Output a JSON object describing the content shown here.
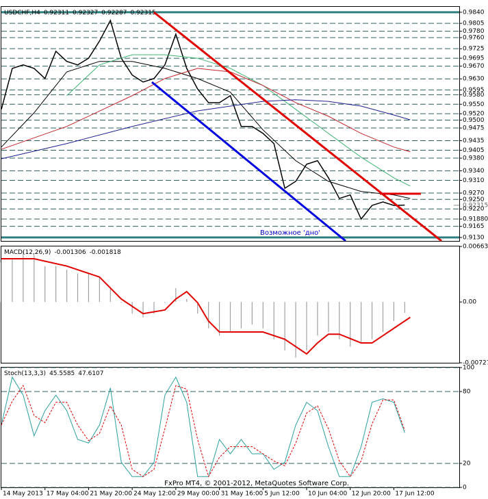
{
  "chart_data": [
    {
      "type": "line",
      "title": "USDCHF,H4",
      "ohlc": [
        0.92311,
        0.92327,
        0.92287,
        0.92315
      ],
      "xlim": [
        0,
        168
      ],
      "ylim": [
        0.9119,
        0.9857
      ],
      "grid": true,
      "yticks": [
        {
          "value": 0.984,
          "label": "0.9840"
        },
        0.9805,
        {
          "value": 0.978,
          "label": "0.9780"
        },
        {
          "value": 0.976,
          "label": "0.9760"
        },
        0.9725,
        0.9695,
        {
          "value": 0.967,
          "label": "0.9670"
        },
        {
          "value": 0.963,
          "label": "0.9630"
        },
        0.9595,
        {
          "value": 0.958,
          "label": "0.9580"
        },
        {
          "value": 0.955,
          "label": "0.9550"
        },
        {
          "value": 0.952,
          "label": "0.9520"
        },
        {
          "value": 0.95,
          "label": "0.9500"
        },
        0.9475,
        0.9435,
        0.9405,
        {
          "value": 0.938,
          "label": "0.9380"
        },
        {
          "value": 0.934,
          "label": "0.9340"
        },
        {
          "value": 0.931,
          "label": "0.9310"
        },
        {
          "value": 0.927,
          "label": "0.9270"
        },
        {
          "value": 0.925,
          "label": "0.9250"
        },
        {
          "value": 0.922,
          "label": "0.9220"
        },
        {
          "value": 0.9188,
          "label": "0.91880"
        },
        0.9165,
        {
          "value": 0.913,
          "label": "0.9130"
        }
      ],
      "price_marker": 0.92315,
      "annotation": "Возможное 'дно'",
      "series": [
        {
          "color": "#000000",
          "width": 1.5,
          "x": [
            0,
            4,
            8,
            12,
            16,
            20,
            24,
            28,
            32,
            36,
            40,
            44,
            48,
            52,
            56,
            60,
            64,
            68,
            72,
            76,
            80,
            84,
            88,
            92,
            96,
            100,
            104,
            108,
            112,
            116,
            120,
            124,
            128,
            132,
            136,
            140,
            144,
            148
          ],
          "values": [
            0.9534,
            0.9663,
            0.9674,
            0.9663,
            0.9631,
            0.9717,
            0.9685,
            0.9674,
            0.9695,
            0.9749,
            0.9814,
            0.9695,
            0.9642,
            0.962,
            0.9631,
            0.9674,
            0.9771,
            0.9663,
            0.9598,
            0.9555,
            0.9555,
            0.9577,
            0.948,
            0.948,
            0.9458,
            0.9426,
            0.9285,
            0.9307,
            0.9361,
            0.9372,
            0.9318,
            0.9253,
            0.9264,
            0.9188,
            0.9231,
            0.9242,
            0.9231,
            0.9232
          ]
        },
        {
          "color": "#000000",
          "width": 1,
          "x": [
            0,
            12,
            24,
            36,
            48,
            60,
            72,
            84,
            96,
            108,
            120,
            132,
            144,
            150
          ],
          "values": [
            0.9415,
            0.9523,
            0.9652,
            0.9685,
            0.9685,
            0.9663,
            0.9631,
            0.9588,
            0.9469,
            0.9372,
            0.9307,
            0.9275,
            0.9264,
            0.9253
          ]
        },
        {
          "color": "#3cb371",
          "width": 1,
          "x": [
            24,
            36,
            48,
            60,
            72,
            84,
            96,
            108,
            120,
            132,
            144,
            150
          ],
          "values": [
            0.9577,
            0.9674,
            0.9706,
            0.9706,
            0.9695,
            0.9663,
            0.9609,
            0.9534,
            0.9458,
            0.9383,
            0.9318,
            0.9292
          ]
        },
        {
          "color": "#c0282d",
          "width": 1,
          "x": [
            0,
            24,
            48,
            60,
            72,
            84,
            96,
            108,
            120,
            132,
            144,
            150
          ],
          "values": [
            0.9408,
            0.948,
            0.9577,
            0.9631,
            0.9663,
            0.9652,
            0.9609,
            0.9555,
            0.9512,
            0.9458,
            0.9415,
            0.94
          ]
        },
        {
          "color": "#1f1f8f",
          "width": 1,
          "x": [
            0,
            24,
            48,
            72,
            96,
            108,
            120,
            132,
            144,
            150
          ],
          "values": [
            0.9378,
            0.9426,
            0.948,
            0.9529,
            0.9559,
            0.9564,
            0.9559,
            0.9544,
            0.9516,
            0.9501
          ]
        }
      ]
    },
    {
      "type": "line",
      "title": "MACD(12,26,9)",
      "ohlc": [
        -0.001306,
        -0.001818
      ],
      "xlim": [
        0,
        168
      ],
      "ylim": [
        -0.00727,
        0.006637
      ],
      "grid": false,
      "yticks": [
        0.006637,
        {
          "value": 0,
          "label": "0.00"
        },
        -0.00727
      ],
      "series": [
        {
          "color": "#a0a0a0",
          "style": "histogram",
          "x": [
            0,
            4,
            8,
            12,
            16,
            20,
            24,
            28,
            32,
            36,
            40,
            44,
            48,
            52,
            56,
            60,
            64,
            68,
            72,
            76,
            80,
            84,
            88,
            92,
            96,
            100,
            104,
            108,
            112,
            116,
            120,
            124,
            128,
            132,
            136,
            140,
            144,
            148
          ],
          "values": [
            0.00473,
            0.00516,
            0.00604,
            0.0056,
            0.00429,
            0.00429,
            0.00385,
            0.00341,
            0.00341,
            0.00298,
            0.00166,
            -9e-05,
            -0.0014,
            -0.00184,
            -0.0014,
            -9e-05,
            0.00166,
            0.00035,
            -0.0014,
            -0.00315,
            -0.00403,
            -0.00359,
            -0.00315,
            -0.00271,
            -0.00315,
            -0.00446,
            -0.00578,
            -0.00665,
            -0.00578,
            -0.00403,
            -0.00359,
            -0.00446,
            -0.00534,
            -0.0049,
            -0.00446,
            -0.00359,
            -0.00228,
            -0.0013
          ]
        },
        {
          "color": "#e00000",
          "width": 2,
          "x": [
            0,
            12,
            24,
            36,
            44,
            52,
            60,
            64,
            68,
            72,
            76,
            80,
            88,
            96,
            104,
            112,
            116,
            120,
            124,
            132,
            136,
            144,
            150
          ],
          "values": [
            0.00516,
            0.00516,
            0.00429,
            0.00298,
            0.00035,
            -0.0014,
            -0.00096,
            0.00035,
            0.00123,
            -9e-05,
            -0.00228,
            -0.00359,
            -0.00359,
            -0.00359,
            -0.00446,
            -0.00621,
            -0.0049,
            -0.00385,
            -0.00385,
            -0.0049,
            -0.0049,
            -0.00315,
            -0.00184
          ]
        }
      ]
    },
    {
      "type": "line",
      "title": "Stoch(13,3,3)",
      "ohlc": [
        45.5585,
        47.6107
      ],
      "xlim": [
        0,
        168
      ],
      "ylim": [
        0,
        100
      ],
      "grid": true,
      "yticks": [
        100,
        80,
        20,
        0
      ],
      "xticks": [
        {
          "value": 0,
          "label": "14 May 2013"
        },
        {
          "value": 16,
          "label": "17 May 04:00"
        },
        {
          "value": 32,
          "label": "21 May 20:00"
        },
        {
          "value": 48,
          "label": "24 May 12:00"
        },
        {
          "value": 64,
          "label": "29 May 00:00"
        },
        {
          "value": 80,
          "label": "31 May 16:00"
        },
        {
          "value": 96,
          "label": "5 Jun 12:00"
        },
        {
          "value": 112,
          "label": "10 Jun 04:00"
        },
        {
          "value": 128,
          "label": "12 Jun 20:00"
        },
        {
          "value": 144,
          "label": "17 Jun 12:00"
        }
      ],
      "series": [
        {
          "color": "#2aa0a0",
          "width": 1,
          "x": [
            0,
            4,
            8,
            12,
            16,
            20,
            24,
            28,
            32,
            36,
            40,
            44,
            48,
            52,
            56,
            60,
            64,
            68,
            72,
            76,
            80,
            84,
            88,
            92,
            96,
            100,
            104,
            108,
            112,
            116,
            120,
            124,
            128,
            132,
            136,
            140,
            144,
            148
          ],
          "values": [
            52,
            92,
            77,
            43,
            64,
            77,
            64,
            40,
            37,
            52,
            83,
            21,
            9,
            9,
            21,
            77,
            92,
            71,
            9,
            9,
            40,
            28,
            40,
            28,
            28,
            15,
            21,
            52,
            71,
            64,
            34,
            9,
            9,
            34,
            71,
            74,
            71,
            45.6
          ]
        },
        {
          "color": "#e00000",
          "width": 1,
          "dash": true,
          "x": [
            0,
            4,
            8,
            12,
            16,
            20,
            24,
            28,
            32,
            36,
            40,
            44,
            48,
            52,
            56,
            60,
            64,
            68,
            72,
            76,
            80,
            84,
            88,
            92,
            96,
            100,
            104,
            108,
            112,
            116,
            120,
            124,
            128,
            132,
            136,
            140,
            144,
            148
          ],
          "values": [
            52,
            72,
            85,
            60,
            54,
            71,
            71,
            52,
            39,
            45,
            68,
            52,
            15,
            9,
            15,
            49,
            85,
            82,
            40,
            9,
            25,
            34,
            34,
            34,
            28,
            22,
            18,
            37,
            62,
            68,
            49,
            22,
            9,
            22,
            53,
            73,
            73,
            47.6
          ]
        }
      ]
    }
  ],
  "footer": "FxPro MT4, © 2001-2012, MetaQuotes Software Corp."
}
